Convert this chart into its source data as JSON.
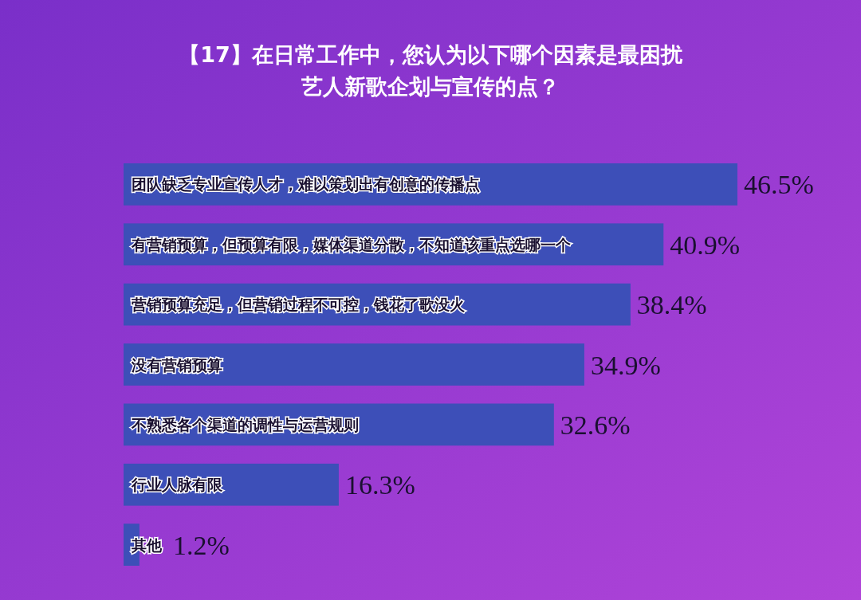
{
  "chart_data": {
    "type": "bar",
    "orientation": "horizontal",
    "title": "【17】在日常工作中，您认为以下哪个因素是最困扰艺人新歌企划与宣传的点？",
    "categories": [
      "团队缺乏专业宣传人才，难以策划出有创意的传播点",
      "有营销预算，但预算有限，媒体渠道分散，不知道该重点选哪一个",
      "营销预算充足，但营销过程不可控，钱花了歌没火",
      "没有营销预算",
      "不熟悉各个渠道的调性与运营规则",
      "行业人脉有限",
      "其他"
    ],
    "values": [
      46.5,
      40.9,
      38.4,
      34.9,
      32.6,
      16.3,
      1.2
    ],
    "value_labels": [
      "46.5%",
      "40.9%",
      "38.4%",
      "34.9%",
      "32.6%",
      "16.3%",
      "1.2%"
    ],
    "color": "#3d4fb8"
  }
}
